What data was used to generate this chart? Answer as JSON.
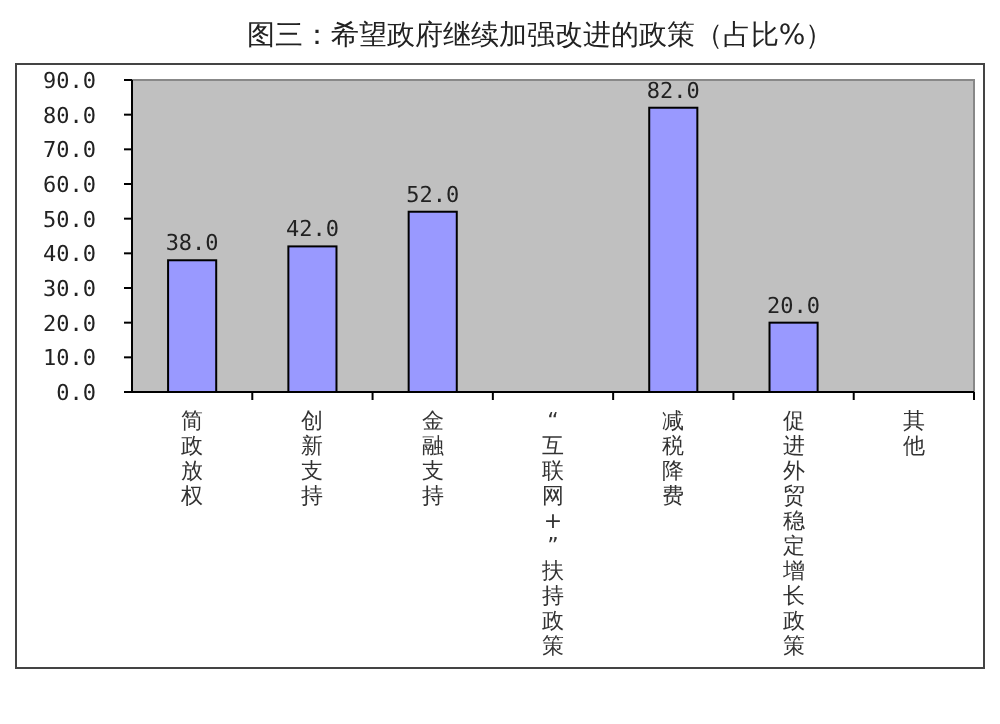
{
  "chart_data": {
    "type": "bar",
    "title": "图三：希望政府继续加强改进的政策（占比%）",
    "categories": [
      "简政放权",
      "创新支持",
      "金融支持",
      "“互联网+”扶持政策",
      "减税降费",
      "促进外贸稳定增长政策",
      "其他"
    ],
    "values": [
      38.0,
      42.0,
      52.0,
      null,
      82.0,
      20.0,
      null
    ],
    "value_labels": [
      "38.0",
      "42.0",
      "52.0",
      null,
      "82.0",
      "20.0",
      null
    ],
    "color": "#9999ff",
    "ylim": [
      0,
      90
    ],
    "yticks": [
      {
        "value": 0,
        "label": "0.0"
      },
      {
        "value": 10,
        "label": "10.0"
      },
      {
        "value": 20,
        "label": "20.0"
      },
      {
        "value": 30,
        "label": "30.0"
      },
      {
        "value": 40,
        "label": "40.0"
      },
      {
        "value": 50,
        "label": "50.0"
      },
      {
        "value": 60,
        "label": "60.0"
      },
      {
        "value": 70,
        "label": "70.0"
      },
      {
        "value": 80,
        "label": "80.0"
      },
      {
        "value": 90,
        "label": "90.0"
      }
    ],
    "grid": false
  }
}
